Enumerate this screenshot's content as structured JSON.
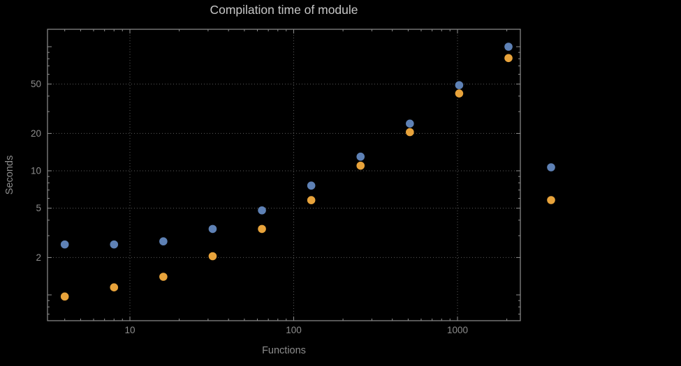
{
  "chart_data": {
    "type": "scatter",
    "title": "Compilation time of module",
    "xlabel": "Functions",
    "ylabel": "Seconds",
    "x_scale": "log",
    "y_scale": "log",
    "x_range": [
      3.1,
      2400
    ],
    "y_range": [
      0.62,
      140
    ],
    "grid": true,
    "x_ticks": [
      {
        "value": 10,
        "label": "10"
      },
      {
        "value": 100,
        "label": "100"
      },
      {
        "value": 1000,
        "label": "1000"
      }
    ],
    "y_ticks": [
      {
        "value": 2,
        "label": "2"
      },
      {
        "value": 5,
        "label": "5"
      },
      {
        "value": 10,
        "label": "10"
      },
      {
        "value": 20,
        "label": "20"
      },
      {
        "value": 50,
        "label": "50"
      }
    ],
    "x": [
      4,
      8,
      16,
      32,
      64,
      128,
      256,
      512,
      1024,
      2048
    ],
    "series": [
      {
        "name": "blue",
        "color": "#5E81B5",
        "values": [
          2.55,
          2.55,
          2.7,
          3.4,
          4.8,
          7.6,
          13,
          24,
          49,
          100
        ]
      },
      {
        "name": "orange",
        "color": "#E8A33B",
        "values": [
          0.97,
          1.15,
          1.4,
          2.05,
          3.4,
          5.8,
          11,
          20.5,
          42,
          81
        ]
      }
    ],
    "legend": {
      "position": "right",
      "markers": [
        {
          "series": "blue",
          "color": "#5E81B5"
        },
        {
          "series": "orange",
          "color": "#E8A33B"
        }
      ]
    }
  },
  "colors": {
    "background": "#000000",
    "frame": "#8f8f8f",
    "grid": "#5c5c5c",
    "title_text": "#c7c7c7",
    "tick_text": "#8d8d8d"
  }
}
